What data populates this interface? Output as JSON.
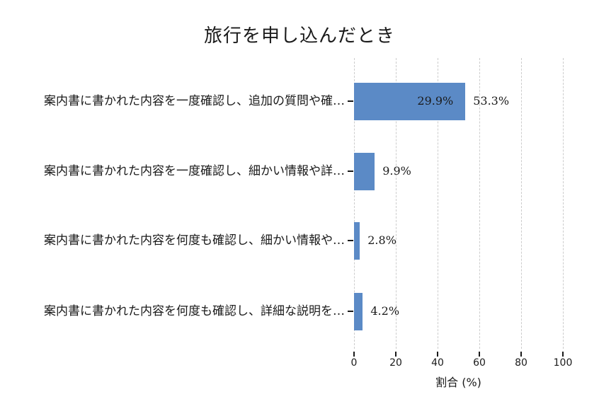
{
  "chart_data": {
    "type": "bar",
    "orientation": "horizontal",
    "title": "旅行を申し込んだとき",
    "xlabel": "割合 (%)",
    "categories": [
      "案内書に書かれた内容を一度確認し、追加の質問や確…",
      "案内書に書かれた内容を一度確認し、細かい情報や詳…",
      "案内書に書かれた内容を何度も確認し、細かい情報や…",
      "案内書に書かれた内容を何度も確認し、詳細な説明を…"
    ],
    "values": [
      53.3,
      9.9,
      2.8,
      4.2
    ],
    "value_labels": [
      "53.3%",
      "9.9%",
      "2.8%",
      "4.2%"
    ],
    "inside_bar_labels": [
      "29.9%",
      "",
      "",
      ""
    ],
    "xlim": [
      0,
      100
    ],
    "xticks": [
      0,
      20,
      40,
      60,
      80,
      100
    ],
    "bar_color": "#5b8ac6",
    "gridline_color": "#cccccc",
    "grid": "vertical-dashed",
    "legend": "none"
  }
}
